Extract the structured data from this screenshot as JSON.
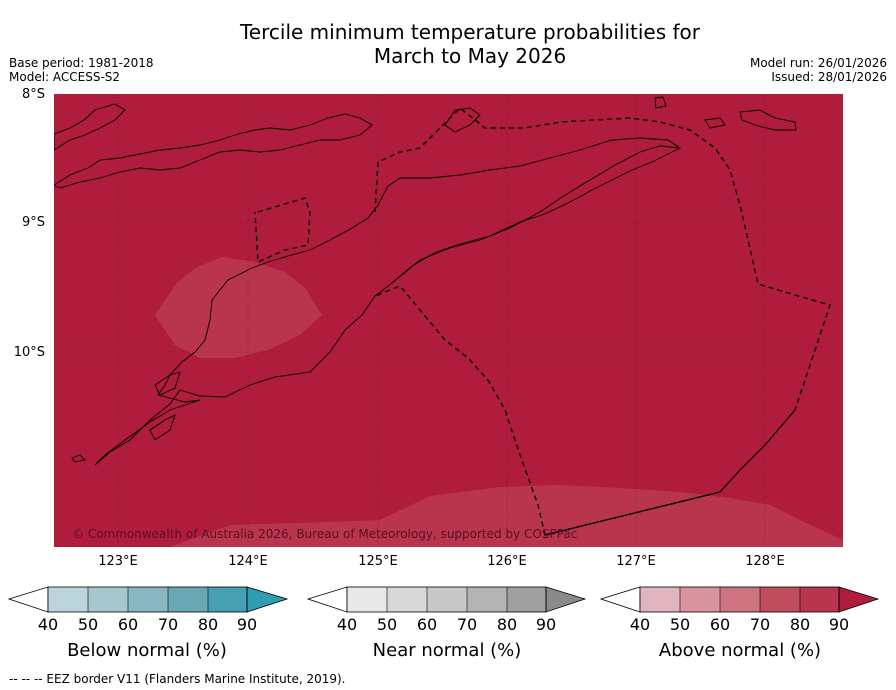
{
  "title_line1": "Tercile minimum temperature probabilities for",
  "title_line2": "March to May 2026",
  "meta_left": {
    "base_period": "Base period: 1981-2018",
    "model": "Model: ACCESS-S2"
  },
  "meta_right": {
    "model_run": "Model run: 26/01/2026",
    "issued": "Issued: 28/01/2026"
  },
  "lat_labels": [
    "8°S",
    "9°S",
    "10°S"
  ],
  "lon_labels": [
    "123°E",
    "124°E",
    "125°E",
    "126°E",
    "127°E",
    "128°E"
  ],
  "copyright": "© Commonwealth of Australia 2026, Bureau of Meteorology, supported by COSPPac",
  "colors": {
    "above_90": "#b01c3b",
    "above_80": "#b9354e",
    "land_outline": "#000000"
  },
  "colorbars": [
    {
      "label": "Below normal (%)",
      "ticks": [
        "40",
        "50",
        "60",
        "70",
        "80",
        "90"
      ],
      "colors": [
        "#ffffff",
        "#bcd4db",
        "#a5c7ce",
        "#8ab8c2",
        "#6aa8b6",
        "#46a0b1",
        "#2f9db2"
      ]
    },
    {
      "label": "Near normal (%)",
      "ticks": [
        "40",
        "50",
        "60",
        "70",
        "80",
        "90"
      ],
      "colors": [
        "#ffffff",
        "#e8e8e8",
        "#d8d8d8",
        "#c8c8c8",
        "#b4b4b4",
        "#a0a0a0",
        "#8a8a8a"
      ]
    },
    {
      "label": "Above normal (%)",
      "ticks": [
        "40",
        "50",
        "60",
        "70",
        "80",
        "90"
      ],
      "colors": [
        "#ffffff",
        "#e0b5be",
        "#d8959f",
        "#cd7480",
        "#c04d5e",
        "#b9354e",
        "#b01c3b"
      ]
    }
  ],
  "footer": "--  --  -- EEZ border V11 (Flanders Marine Institute, 2019)."
}
